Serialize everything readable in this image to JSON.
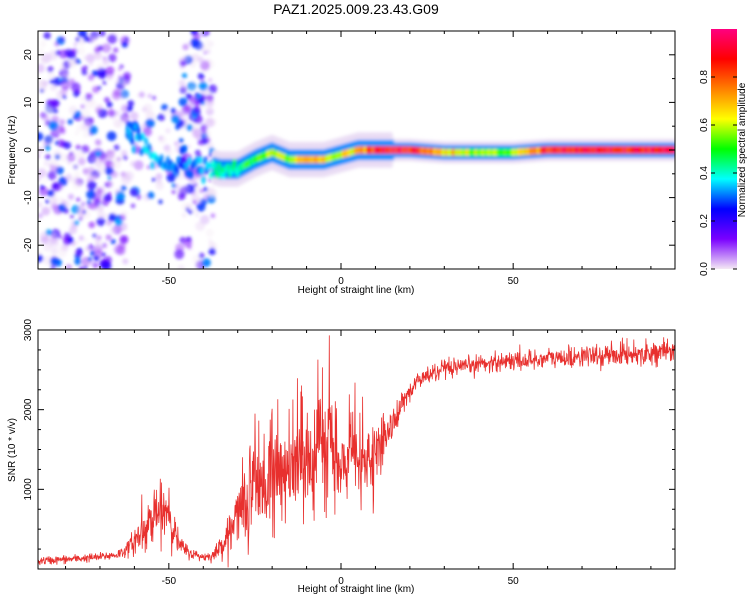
{
  "title": "PAZ1.2025.009.23.43.G09",
  "chart_data": [
    {
      "type": "heatmap",
      "xlabel": "Height of straight line (km)",
      "ylabel": "Frequency (Hz)",
      "xlim": [
        -88,
        97
      ],
      "ylim": [
        -25,
        25
      ],
      "xticks": [
        -50,
        0,
        50
      ],
      "yticks": [
        -20,
        -10,
        0,
        10,
        20
      ],
      "grid": false,
      "colorbar": {
        "label": "Normalized spectral amplitude",
        "range": [
          0,
          1
        ],
        "ticks": [
          "0.0",
          "0.2",
          "0.4",
          "0.6",
          "0.8"
        ],
        "ticks_values": [
          0.0,
          0.2,
          0.4,
          0.6,
          0.8
        ],
        "colors": [
          "#f4e9f4",
          "#7a00ff",
          "#0000ff",
          "#00ffff",
          "#00ff00",
          "#ffff00",
          "#ff8000",
          "#ff0000",
          "#ff0080"
        ]
      },
      "ridge": {
        "x": [
          -60,
          -55,
          -50,
          -45,
          -40,
          -35,
          -30,
          -25,
          -20,
          -15,
          -10,
          -5,
          0,
          5,
          10,
          15,
          20,
          30,
          40,
          50,
          60,
          70,
          80,
          97
        ],
        "y": [
          3,
          -1,
          -3,
          -2,
          -3,
          -4,
          -4,
          -2,
          -0.5,
          -2,
          -2,
          -2,
          -1,
          0,
          0,
          0,
          0,
          -0.5,
          -0.5,
          -0.5,
          0,
          0,
          0,
          0
        ],
        "amplitude": [
          0.3,
          0.35,
          0.3,
          0.3,
          0.35,
          0.4,
          0.45,
          0.5,
          0.6,
          0.55,
          0.7,
          0.65,
          0.6,
          0.7,
          0.85,
          0.9,
          0.9,
          0.7,
          0.55,
          0.55,
          0.85,
          0.9,
          0.9,
          0.9
        ]
      }
    },
    {
      "type": "line",
      "xlabel": "Height of straight line (km)",
      "ylabel": "SNR (10 * v/v)",
      "xlim": [
        -88,
        97
      ],
      "ylim": [
        0,
        3000
      ],
      "xticks": [
        -50,
        0,
        50
      ],
      "yticks": [
        1000,
        2000,
        3000
      ],
      "grid": false,
      "series": [
        {
          "color": "#e8302e",
          "x": [
            -88,
            -80,
            -70,
            -65,
            -62,
            -58,
            -55,
            -52,
            -50,
            -47,
            -44,
            -40,
            -37,
            -34,
            -30,
            -27,
            -24,
            -21,
            -18,
            -15,
            -12,
            -9,
            -6,
            -3,
            0,
            3,
            6,
            9,
            12,
            15,
            18,
            22,
            26,
            30,
            35,
            40,
            45,
            50,
            55,
            60,
            65,
            70,
            75,
            80,
            85,
            90,
            97
          ],
          "y": [
            100,
            120,
            150,
            180,
            250,
            450,
            600,
            700,
            680,
            300,
            200,
            150,
            170,
            350,
            700,
            950,
            1150,
            1000,
            1250,
            1100,
            1400,
            1350,
            1550,
            1500,
            1200,
            1500,
            1250,
            1350,
            1600,
            1800,
            2100,
            2350,
            2450,
            2500,
            2520,
            2580,
            2600,
            2620,
            2620,
            2650,
            2640,
            2680,
            2660,
            2700,
            2700,
            2720,
            2720
          ],
          "noise": [
            60,
            60,
            60,
            70,
            100,
            300,
            350,
            350,
            350,
            150,
            80,
            60,
            80,
            200,
            400,
            800,
            800,
            700,
            700,
            600,
            800,
            700,
            800,
            700,
            400,
            600,
            500,
            500,
            350,
            250,
            180,
            150,
            150,
            130,
            130,
            130,
            140,
            140,
            140,
            150,
            150,
            150,
            150,
            160,
            160,
            160,
            160
          ]
        }
      ]
    }
  ]
}
